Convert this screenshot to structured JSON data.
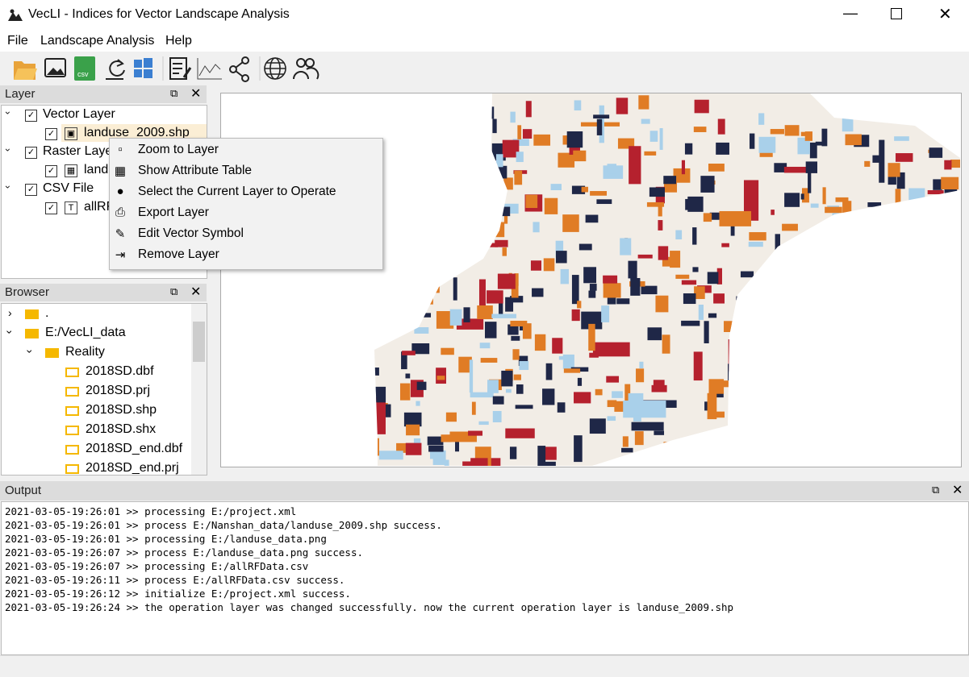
{
  "window": {
    "title": "VecLI - Indices for Vector Landscape Analysis"
  },
  "menu": [
    "File",
    "Landscape Analysis",
    "Help"
  ],
  "layer_panel": {
    "title": "Layer",
    "groups": [
      {
        "label": "Vector Layer",
        "children": [
          "landuse_2009.shp"
        ]
      },
      {
        "label": "Raster Layer",
        "children": [
          "landuse_data.png"
        ]
      },
      {
        "label": "CSV File",
        "children": [
          "allRFData.csv"
        ]
      }
    ]
  },
  "context_menu": [
    "Zoom to Layer",
    "Show Attribute Table",
    "Select the Current Layer to Operate",
    "Export Layer",
    "Edit Vector Symbol",
    "Remove Layer"
  ],
  "browser_panel": {
    "title": "Browser",
    "items": [
      ".",
      "E:/VecLI_data",
      "Reality",
      "2018SD.dbf",
      "2018SD.prj",
      "2018SD.shp",
      "2018SD.shx",
      "2018SD_end.dbf",
      "2018SD_end.prj"
    ]
  },
  "output_panel": {
    "title": "Output",
    "lines": [
      "2021-03-05-19:26:01 >> processing E:/project.xml",
      "2021-03-05-19:26:01 >> process E:/Nanshan_data/landuse_2009.shp success.",
      "2021-03-05-19:26:01 >> processing E:/landuse_data.png",
      "2021-03-05-19:26:07 >> process E:/landuse_data.png success.",
      "2021-03-05-19:26:07 >> processing E:/allRFData.csv",
      "2021-03-05-19:26:11 >> process E:/allRFData.csv success.",
      "2021-03-05-19:26:12 >> initialize E:/project.xml success.",
      "2021-03-05-19:26:24 >> the operation layer was changed successfully. now the current operation layer is landuse_2009.shp"
    ]
  }
}
